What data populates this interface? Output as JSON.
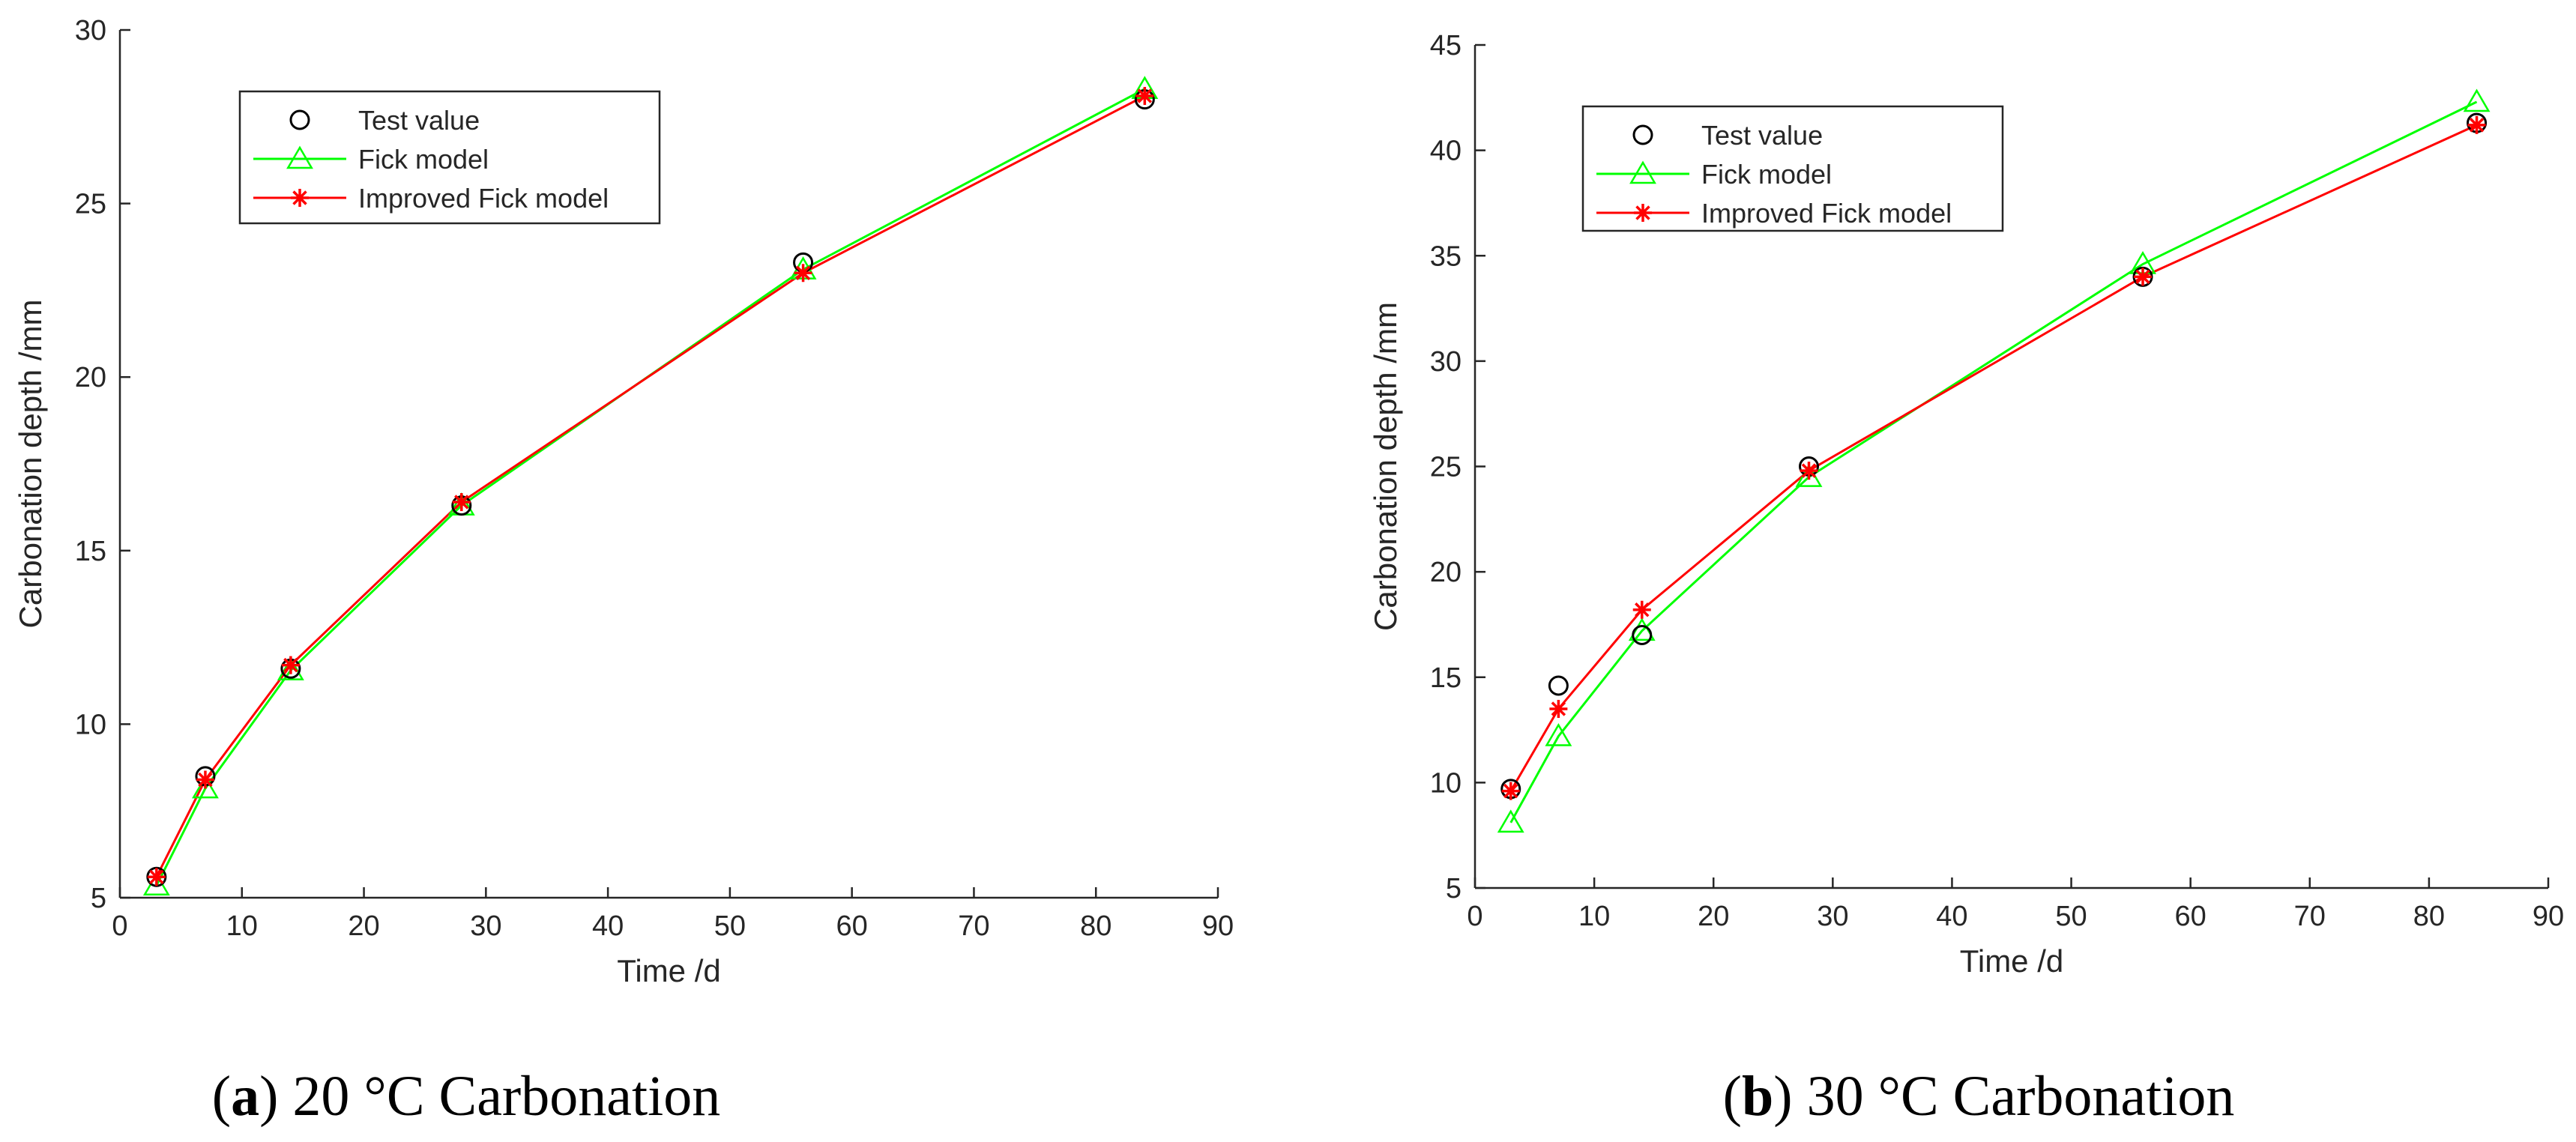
{
  "chart_data": [
    {
      "type": "line",
      "caption": {
        "label": "a",
        "text": " 20 °C Carbonation"
      },
      "xlabel": "Time /d",
      "ylabel": "Carbonation depth /mm",
      "xlim": [
        0,
        90
      ],
      "ylim": [
        5,
        30
      ],
      "xticks": [
        0,
        10,
        20,
        30,
        40,
        50,
        60,
        70,
        80,
        90
      ],
      "yticks": [
        5,
        10,
        15,
        20,
        25,
        30
      ],
      "x": [
        3,
        7,
        14,
        28,
        56,
        84
      ],
      "series": [
        {
          "name": "Test value",
          "marker": "circle",
          "line": false,
          "color": "#000000",
          "values": [
            5.6,
            8.5,
            11.6,
            16.3,
            23.3,
            28.0
          ]
        },
        {
          "name": "Fick model",
          "marker": "triangle",
          "line": true,
          "color": "#00ff00",
          "values": [
            5.35,
            8.15,
            11.55,
            16.3,
            23.1,
            28.3
          ]
        },
        {
          "name": "Improved Fick model",
          "marker": "star",
          "line": true,
          "color": "#ff0000",
          "values": [
            5.6,
            8.4,
            11.7,
            16.4,
            23.0,
            28.1
          ]
        }
      ]
    },
    {
      "type": "line",
      "caption": {
        "label": "b",
        "text": " 30 °C Carbonation"
      },
      "xlabel": "Time /d",
      "ylabel": "Carbonation depth /mm",
      "xlim": [
        0,
        90
      ],
      "ylim": [
        5,
        45
      ],
      "xticks": [
        0,
        10,
        20,
        30,
        40,
        50,
        60,
        70,
        80,
        90
      ],
      "yticks": [
        5,
        10,
        15,
        20,
        25,
        30,
        35,
        40,
        45
      ],
      "x": [
        3,
        7,
        14,
        28,
        56,
        84
      ],
      "series": [
        {
          "name": "Test value",
          "marker": "circle",
          "line": false,
          "color": "#000000",
          "values": [
            9.7,
            14.6,
            17.0,
            25.0,
            34.0,
            41.3
          ]
        },
        {
          "name": "Fick model",
          "marker": "triangle",
          "line": true,
          "color": "#00ff00",
          "values": [
            8.1,
            12.2,
            17.2,
            24.5,
            34.6,
            42.3
          ]
        },
        {
          "name": "Improved Fick model",
          "marker": "star",
          "line": true,
          "color": "#ff0000",
          "values": [
            9.6,
            13.5,
            18.2,
            24.8,
            34.0,
            41.2
          ]
        }
      ]
    }
  ]
}
